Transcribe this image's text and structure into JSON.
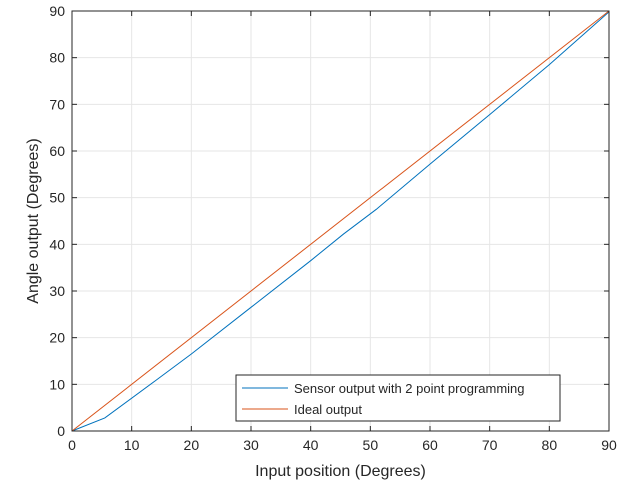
{
  "chart_data": {
    "type": "line",
    "title": "",
    "xlabel": "Input position (Degrees)",
    "ylabel": "Angle output (Degrees)",
    "xlim": [
      0,
      90
    ],
    "ylim": [
      0,
      90
    ],
    "xticks": [
      0,
      10,
      20,
      30,
      40,
      50,
      60,
      70,
      80,
      90
    ],
    "yticks": [
      0,
      10,
      20,
      30,
      40,
      50,
      60,
      70,
      80,
      90
    ],
    "grid": true,
    "legend_position": "bottom-right",
    "series": [
      {
        "name": "Sensor output with 2 point programming",
        "color": "#0072bd",
        "x": [
          0,
          5.5,
          14,
          20,
          30,
          40,
          45.5,
          51,
          60,
          70,
          80,
          90
        ],
        "y": [
          0,
          2.8,
          10.8,
          16.5,
          26.5,
          36.5,
          42.2,
          47.5,
          57.2,
          67.8,
          78.5,
          89.8
        ]
      },
      {
        "name": "Ideal output",
        "color": "#d95319",
        "x": [
          0,
          90
        ],
        "y": [
          0,
          90
        ]
      }
    ]
  }
}
